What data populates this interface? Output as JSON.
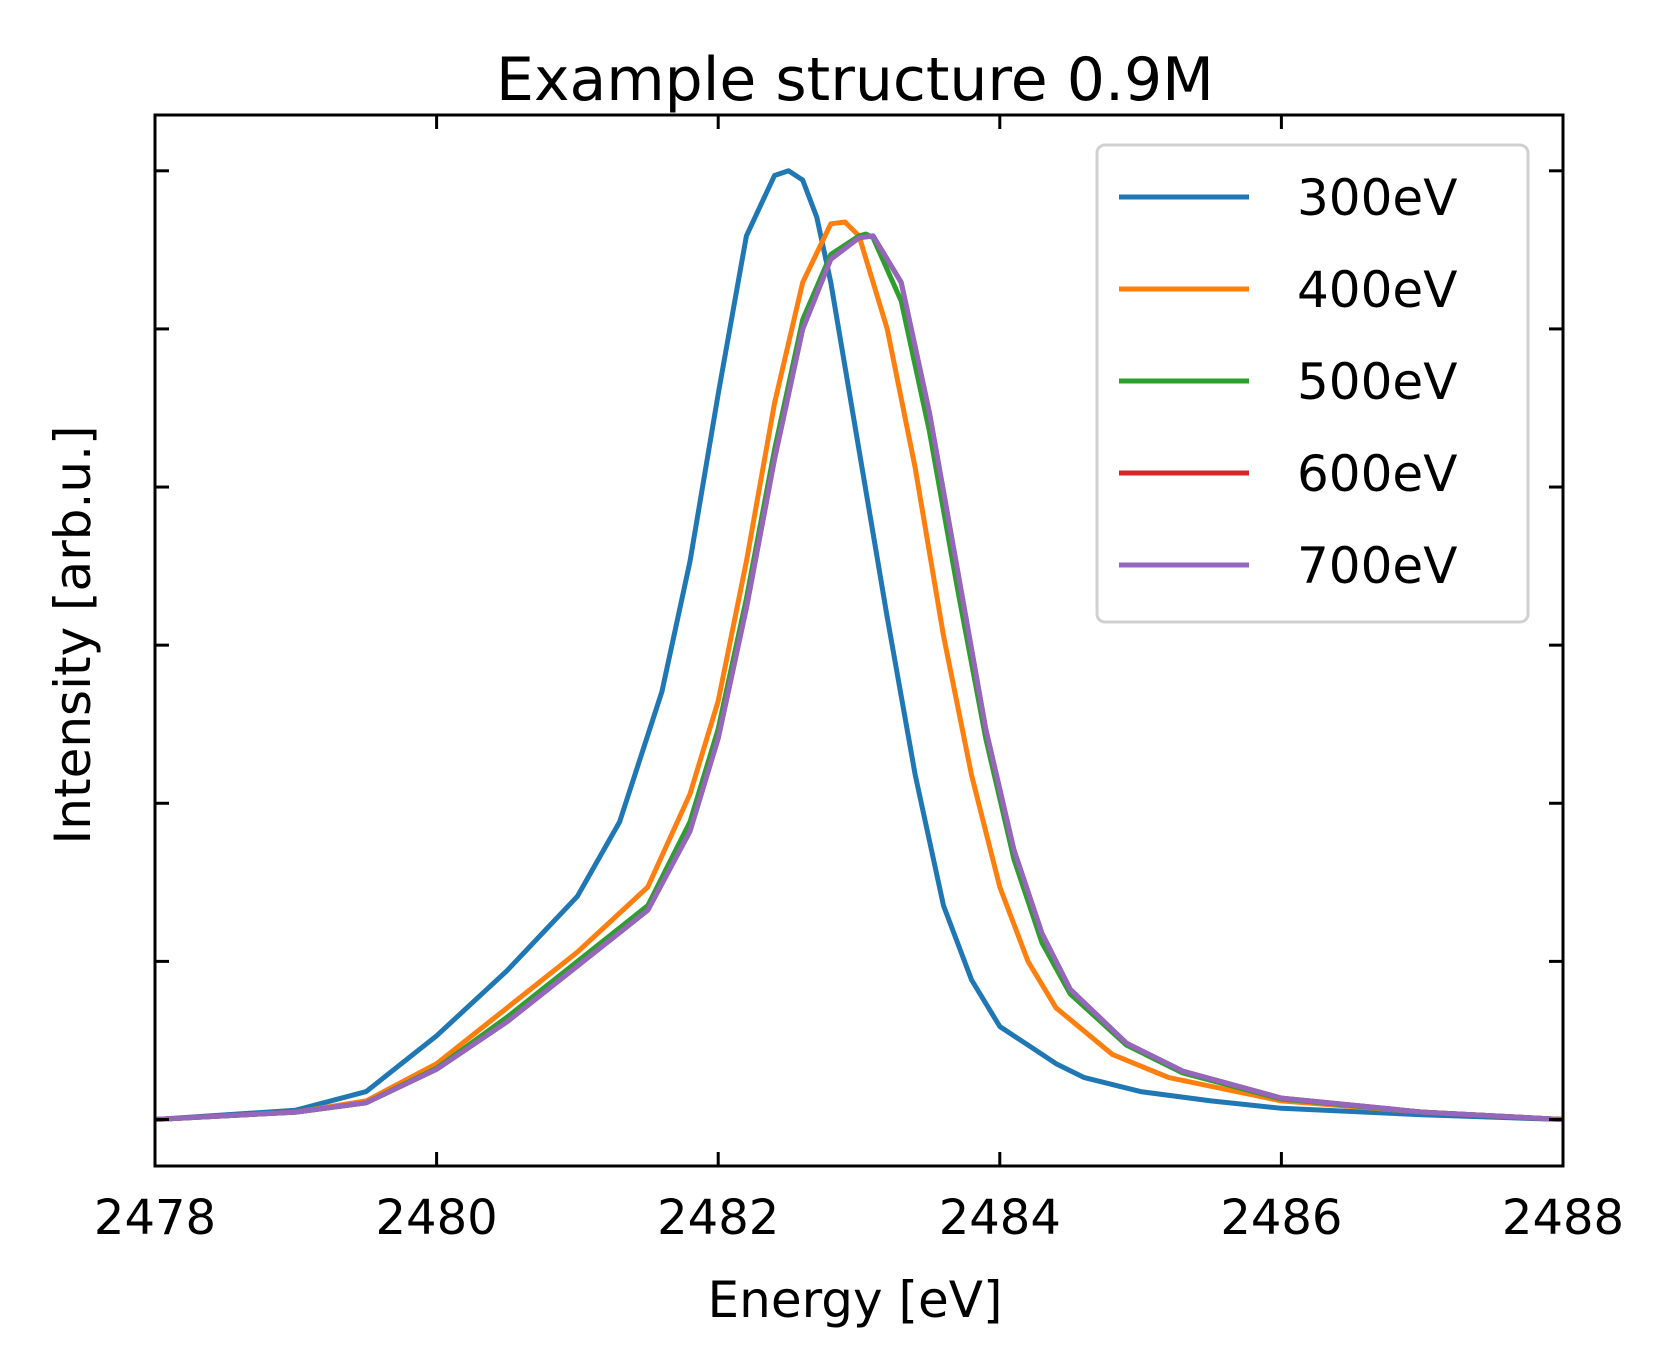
{
  "chart_data": {
    "type": "line",
    "title": "Example structure 0.9M",
    "xlabel": "Energy [eV]",
    "ylabel": "Intensity [arb.u.]",
    "xlim": [
      2478,
      2488
    ],
    "ylim": [
      -0.05,
      1.08
    ],
    "xticks": [
      2478,
      2480,
      2482,
      2484,
      2486,
      2488
    ],
    "yticks": [
      0.0,
      0.17,
      0.34,
      0.51,
      0.68,
      0.85,
      1.02
    ],
    "ytick_labels_visible": false,
    "grid": false,
    "legend_position": "top-right",
    "series": [
      {
        "name": "300eV",
        "color": "#1f77b4",
        "x": [
          2478,
          2479,
          2479.5,
          2480,
          2480.5,
          2481,
          2481.3,
          2481.6,
          2481.8,
          2482,
          2482.2,
          2482.4,
          2482.5,
          2482.6,
          2482.7,
          2482.8,
          2483,
          2483.2,
          2483.4,
          2483.6,
          2483.8,
          2484,
          2484.2,
          2484.4,
          2484.6,
          2485,
          2485.5,
          2486,
          2487,
          2488
        ],
        "y": [
          0.0,
          0.01,
          0.03,
          0.09,
          0.16,
          0.24,
          0.32,
          0.46,
          0.6,
          0.78,
          0.95,
          1.015,
          1.02,
          1.01,
          0.97,
          0.9,
          0.72,
          0.54,
          0.37,
          0.23,
          0.15,
          0.1,
          0.08,
          0.06,
          0.045,
          0.03,
          0.02,
          0.012,
          0.005,
          0.0
        ]
      },
      {
        "name": "400eV",
        "color": "#ff7f0e",
        "x": [
          2478,
          2479,
          2479.5,
          2480,
          2480.5,
          2481,
          2481.5,
          2481.8,
          2482,
          2482.2,
          2482.4,
          2482.6,
          2482.8,
          2482.9,
          2483,
          2483.2,
          2483.4,
          2483.6,
          2483.8,
          2484,
          2484.2,
          2484.4,
          2484.8,
          2485.2,
          2486,
          2487,
          2488
        ],
        "y": [
          0.0,
          0.008,
          0.02,
          0.06,
          0.12,
          0.18,
          0.25,
          0.35,
          0.45,
          0.6,
          0.77,
          0.9,
          0.963,
          0.965,
          0.95,
          0.85,
          0.7,
          0.52,
          0.37,
          0.25,
          0.17,
          0.12,
          0.07,
          0.045,
          0.02,
          0.008,
          0.0
        ]
      },
      {
        "name": "500eV",
        "color": "#2ca02c",
        "x": [
          2478,
          2479,
          2479.5,
          2480,
          2480.5,
          2481,
          2481.5,
          2481.8,
          2482,
          2482.2,
          2482.4,
          2482.6,
          2482.8,
          2483,
          2483.05,
          2483.1,
          2483.3,
          2483.5,
          2483.7,
          2483.9,
          2484.1,
          2484.3,
          2484.5,
          2484.9,
          2485.3,
          2486,
          2487,
          2488
        ],
        "y": [
          0.0,
          0.008,
          0.018,
          0.055,
          0.11,
          0.17,
          0.23,
          0.32,
          0.42,
          0.56,
          0.72,
          0.86,
          0.93,
          0.95,
          0.952,
          0.948,
          0.88,
          0.74,
          0.57,
          0.41,
          0.28,
          0.19,
          0.135,
          0.08,
          0.05,
          0.022,
          0.008,
          0.0
        ]
      },
      {
        "name": "600eV",
        "color": "#d62728",
        "x": [
          2478,
          2479,
          2479.5,
          2480,
          2480.5,
          2481,
          2481.5,
          2481.8,
          2482,
          2482.2,
          2482.4,
          2482.6,
          2482.8,
          2483,
          2483.1,
          2483.3,
          2483.5,
          2483.7,
          2483.9,
          2484.1,
          2484.3,
          2484.5,
          2484.9,
          2485.3,
          2486,
          2487,
          2488
        ],
        "y": [
          0.0,
          0.008,
          0.018,
          0.054,
          0.105,
          0.165,
          0.225,
          0.31,
          0.41,
          0.55,
          0.71,
          0.85,
          0.925,
          0.948,
          0.95,
          0.9,
          0.76,
          0.59,
          0.42,
          0.29,
          0.2,
          0.14,
          0.082,
          0.052,
          0.023,
          0.008,
          0.0
        ]
      },
      {
        "name": "700eV",
        "color": "#9467bd",
        "x": [
          2478,
          2479,
          2479.5,
          2480,
          2480.5,
          2481,
          2481.5,
          2481.8,
          2482,
          2482.2,
          2482.4,
          2482.6,
          2482.8,
          2483,
          2483.1,
          2483.3,
          2483.5,
          2483.7,
          2483.9,
          2484.1,
          2484.3,
          2484.5,
          2484.9,
          2485.3,
          2486,
          2487,
          2488
        ],
        "y": [
          0.0,
          0.008,
          0.018,
          0.054,
          0.105,
          0.165,
          0.225,
          0.31,
          0.41,
          0.55,
          0.71,
          0.85,
          0.925,
          0.948,
          0.95,
          0.9,
          0.76,
          0.59,
          0.42,
          0.29,
          0.2,
          0.14,
          0.082,
          0.052,
          0.023,
          0.008,
          0.0
        ]
      }
    ]
  }
}
